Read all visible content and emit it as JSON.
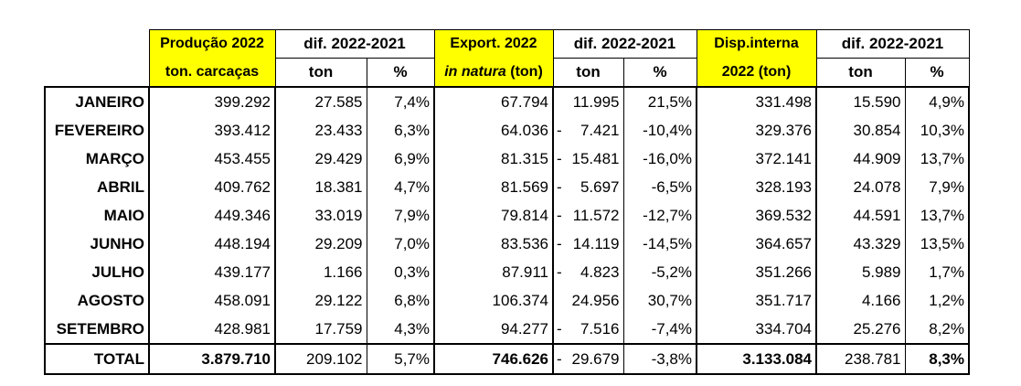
{
  "header": {
    "prod_label_1": "Produção 2022",
    "prod_label_2": "ton. carcaças",
    "dif_label": "dif. 2022-2021",
    "export_label_1": "Export. 2022",
    "export_label_2_italic": "in natura",
    "export_label_2_rest": "(ton)",
    "disp_label_1": "Disp.interna",
    "disp_label_2": "2022 (ton)",
    "ton_label": "ton",
    "pct_label": "%"
  },
  "rows": [
    {
      "month": "JANEIRO",
      "prod": "399.292",
      "prod_dif": "27.585",
      "prod_pct": "7,4%",
      "exp": "67.794",
      "exp_dif_sign": "",
      "exp_dif": "11.995",
      "exp_pct": "21,5%",
      "disp": "331.498",
      "disp_dif": "15.590",
      "disp_pct": "4,9%"
    },
    {
      "month": "FEVEREIRO",
      "prod": "393.412",
      "prod_dif": "23.433",
      "prod_pct": "6,3%",
      "exp": "64.036",
      "exp_dif_sign": "-",
      "exp_dif": "7.421",
      "exp_pct": "-10,4%",
      "disp": "329.376",
      "disp_dif": "30.854",
      "disp_pct": "10,3%"
    },
    {
      "month": "MARÇO",
      "prod": "453.455",
      "prod_dif": "29.429",
      "prod_pct": "6,9%",
      "exp": "81.315",
      "exp_dif_sign": "-",
      "exp_dif": "15.481",
      "exp_pct": "-16,0%",
      "disp": "372.141",
      "disp_dif": "44.909",
      "disp_pct": "13,7%"
    },
    {
      "month": "ABRIL",
      "prod": "409.762",
      "prod_dif": "18.381",
      "prod_pct": "4,7%",
      "exp": "81.569",
      "exp_dif_sign": "-",
      "exp_dif": "5.697",
      "exp_pct": "-6,5%",
      "disp": "328.193",
      "disp_dif": "24.078",
      "disp_pct": "7,9%"
    },
    {
      "month": "MAIO",
      "prod": "449.346",
      "prod_dif": "33.019",
      "prod_pct": "7,9%",
      "exp": "79.814",
      "exp_dif_sign": "-",
      "exp_dif": "11.572",
      "exp_pct": "-12,7%",
      "disp": "369.532",
      "disp_dif": "44.591",
      "disp_pct": "13,7%"
    },
    {
      "month": "JUNHO",
      "prod": "448.194",
      "prod_dif": "29.209",
      "prod_pct": "7,0%",
      "exp": "83.536",
      "exp_dif_sign": "-",
      "exp_dif": "14.119",
      "exp_pct": "-14,5%",
      "disp": "364.657",
      "disp_dif": "43.329",
      "disp_pct": "13,5%"
    },
    {
      "month": "JULHO",
      "prod": "439.177",
      "prod_dif": "1.166",
      "prod_pct": "0,3%",
      "exp": "87.911",
      "exp_dif_sign": "-",
      "exp_dif": "4.823",
      "exp_pct": "-5,2%",
      "disp": "351.266",
      "disp_dif": "5.989",
      "disp_pct": "1,7%"
    },
    {
      "month": "AGOSTO",
      "prod": "458.091",
      "prod_dif": "29.122",
      "prod_pct": "6,8%",
      "exp": "106.374",
      "exp_dif_sign": "",
      "exp_dif": "24.956",
      "exp_pct": "30,7%",
      "disp": "351.717",
      "disp_dif": "4.166",
      "disp_pct": "1,2%"
    },
    {
      "month": "SETEMBRO",
      "prod": "428.981",
      "prod_dif": "17.759",
      "prod_pct": "4,3%",
      "exp": "94.277",
      "exp_dif_sign": "-",
      "exp_dif": "7.516",
      "exp_pct": "-7,4%",
      "disp": "334.704",
      "disp_dif": "25.276",
      "disp_pct": "8,2%"
    }
  ],
  "total": {
    "month": "TOTAL",
    "prod": "3.879.710",
    "prod_dif": "209.102",
    "prod_pct": "5,7%",
    "exp": "746.626",
    "exp_dif_sign": "-",
    "exp_dif": "29.679",
    "exp_pct": "-3,8%",
    "disp": "3.133.084",
    "disp_dif": "238.781",
    "disp_pct": "8,3%"
  },
  "colors": {
    "highlight": "#ffff00"
  }
}
